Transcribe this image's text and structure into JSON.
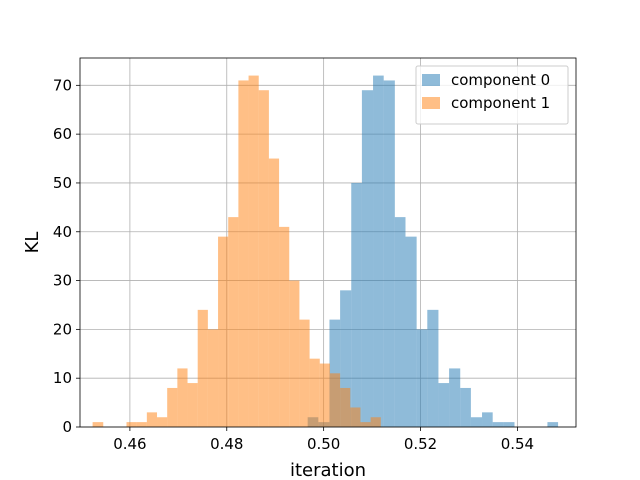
{
  "chart_data": {
    "type": "histogram",
    "title": "",
    "xlabel": "iteration",
    "ylabel": "KL",
    "xlim": [
      0.4497,
      0.5521
    ],
    "ylim": [
      0,
      75.6
    ],
    "xticks": [
      0.46,
      0.48,
      0.5,
      0.52,
      0.54
    ],
    "xtick_labels": [
      "0.46",
      "0.48",
      "0.50",
      "0.52",
      "0.54"
    ],
    "yticks": [
      0,
      10,
      20,
      30,
      40,
      50,
      60,
      70
    ],
    "ytick_labels": [
      "0",
      "10",
      "20",
      "30",
      "40",
      "50",
      "60",
      "70"
    ],
    "grid": true,
    "legend_position": "top-right",
    "series": [
      {
        "name": "component 0",
        "color": "#1f77b4",
        "alpha": 0.5,
        "bins": [
          [
            0.4967,
            0.4989,
            2
          ],
          [
            0.4989,
            0.5012,
            1
          ],
          [
            0.5012,
            0.5034,
            22
          ],
          [
            0.5034,
            0.5057,
            28
          ],
          [
            0.5057,
            0.5079,
            50
          ],
          [
            0.5079,
            0.5102,
            69
          ],
          [
            0.5102,
            0.5124,
            72
          ],
          [
            0.5124,
            0.5147,
            71
          ],
          [
            0.5147,
            0.5169,
            43
          ],
          [
            0.5169,
            0.5192,
            39
          ],
          [
            0.5192,
            0.5214,
            20
          ],
          [
            0.5214,
            0.5237,
            24
          ],
          [
            0.5237,
            0.5259,
            9
          ],
          [
            0.5259,
            0.5282,
            12
          ],
          [
            0.5282,
            0.5304,
            8
          ],
          [
            0.5304,
            0.5327,
            2
          ],
          [
            0.5327,
            0.5349,
            3
          ],
          [
            0.5349,
            0.5372,
            1
          ],
          [
            0.5372,
            0.5394,
            1
          ],
          [
            0.5462,
            0.5484,
            1
          ]
        ]
      },
      {
        "name": "component 1",
        "color": "#ff7f0e",
        "alpha": 0.5,
        "bins": [
          [
            0.4523,
            0.4545,
            1
          ],
          [
            0.4593,
            0.4614,
            1
          ],
          [
            0.4614,
            0.4635,
            1
          ],
          [
            0.4635,
            0.4656,
            3
          ],
          [
            0.4656,
            0.4677,
            2
          ],
          [
            0.4677,
            0.4698,
            8
          ],
          [
            0.4698,
            0.4719,
            12
          ],
          [
            0.4719,
            0.474,
            9
          ],
          [
            0.474,
            0.4761,
            24
          ],
          [
            0.4761,
            0.4782,
            20
          ],
          [
            0.4782,
            0.4803,
            39
          ],
          [
            0.4803,
            0.4824,
            43
          ],
          [
            0.4824,
            0.4845,
            71
          ],
          [
            0.4845,
            0.4866,
            72
          ],
          [
            0.4866,
            0.4887,
            69
          ],
          [
            0.4887,
            0.4908,
            55
          ],
          [
            0.4908,
            0.4929,
            41
          ],
          [
            0.4929,
            0.495,
            30
          ],
          [
            0.495,
            0.4971,
            22
          ],
          [
            0.4971,
            0.4992,
            14
          ],
          [
            0.4992,
            0.5013,
            13
          ],
          [
            0.5013,
            0.5034,
            11
          ],
          [
            0.5034,
            0.5055,
            8
          ],
          [
            0.5055,
            0.5076,
            4
          ],
          [
            0.5076,
            0.5097,
            1
          ],
          [
            0.5097,
            0.5118,
            2
          ]
        ]
      }
    ]
  }
}
